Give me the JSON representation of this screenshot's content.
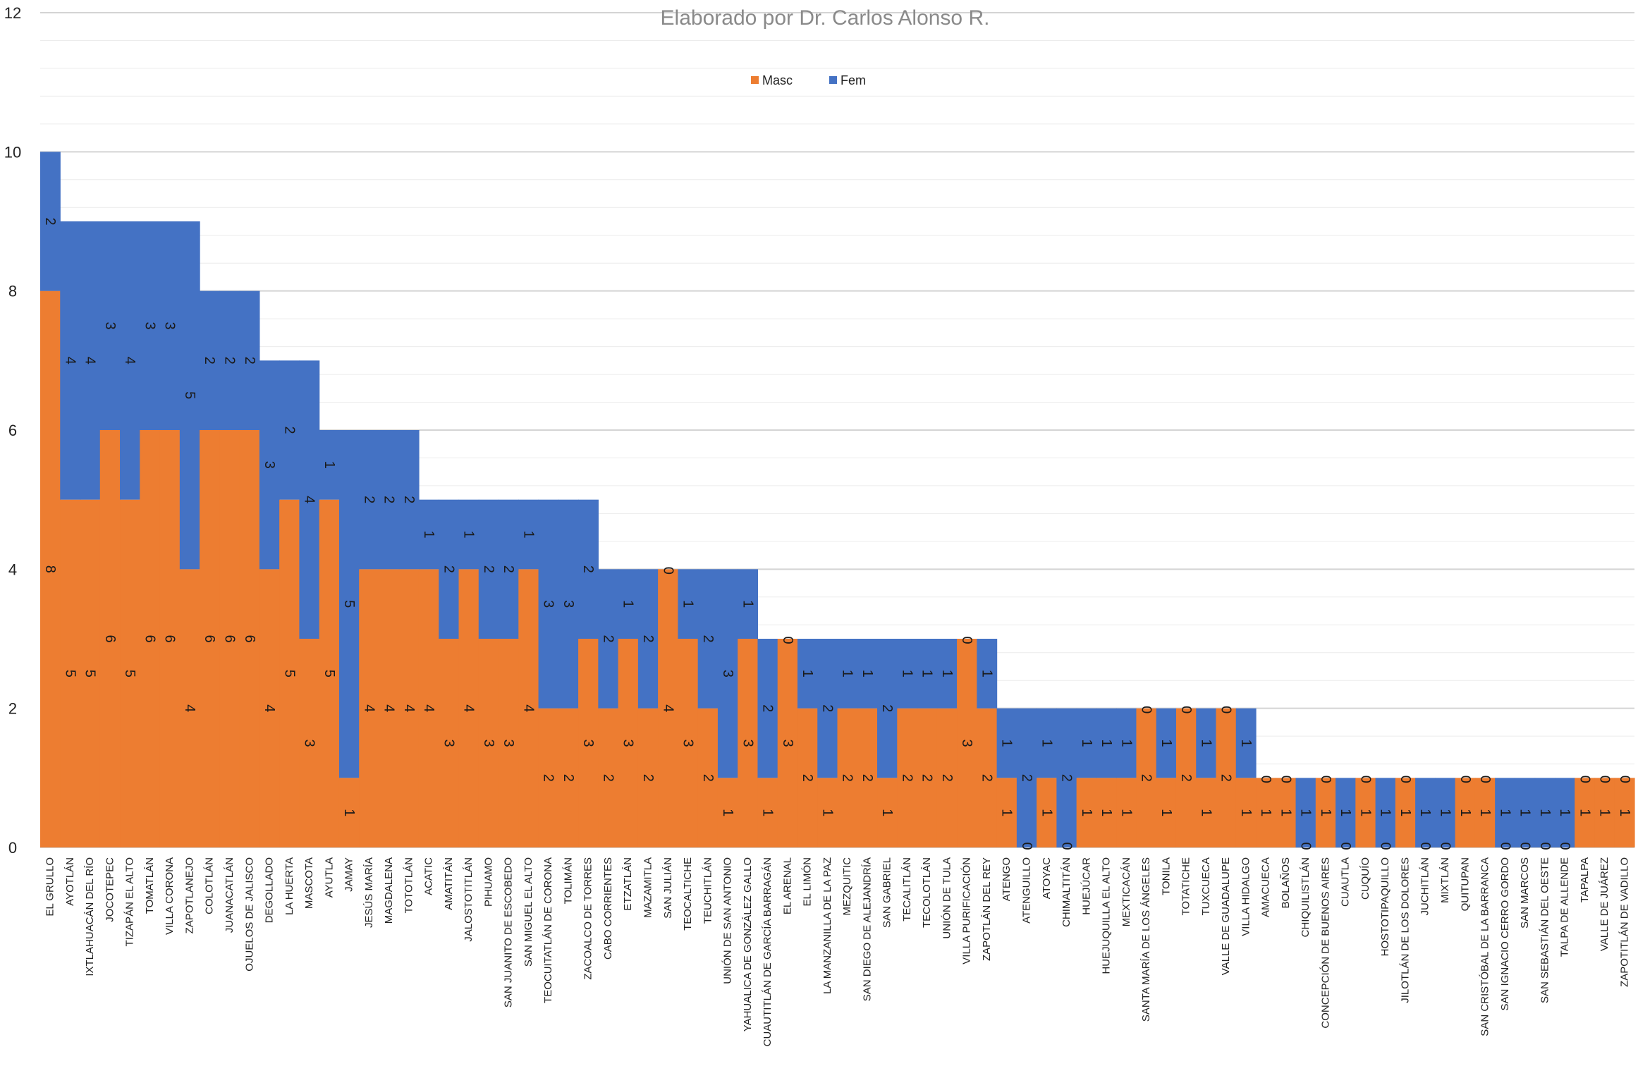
{
  "chart_data": {
    "type": "bar",
    "stacked": true,
    "title": "Elaborado por Dr. Carlos Alonso R.",
    "xlabel": "",
    "ylabel": "",
    "ylim": [
      0,
      12
    ],
    "yticks": [
      0,
      2,
      4,
      6,
      8,
      10,
      12
    ],
    "grid": true,
    "legend_position": "top-center",
    "categories": [
      "EL GRULLO",
      "AYOTLÁN",
      "IXTLAHUACÁN DEL RÍO",
      "JOCOTEPEC",
      "TIZAPÁN EL ALTO",
      "TOMATLÁN",
      "VILLA CORONA",
      "ZAPOTLANEJO",
      "COLOTLÁN",
      "JUANACATLÁN",
      "OJUELOS DE JALISCO",
      "DEGOLLADO",
      "LA HUERTA",
      "MASCOTA",
      "AYUTLA",
      "JAMAY",
      "JESÚS MARÍA",
      "MAGDALENA",
      "TOTOTLÁN",
      "ACATIC",
      "AMATITÁN",
      "JALOSTOTITLÁN",
      "PIHUAMO",
      "SAN JUANITO DE ESCOBEDO",
      "SAN MIGUEL EL ALTO",
      "TEOCUITATLÁN DE CORONA",
      "TOLIMÁN",
      "ZACOALCO DE TORRES",
      "CABO CORRIENTES",
      "ETZATLÁN",
      "MAZAMITLA",
      "SAN JULIÁN",
      "TEOCALTICHE",
      "TEUCHITLÁN",
      "UNIÓN DE SAN ANTONIO",
      "YAHUALICA DE GONZÁLEZ GALLO",
      "CUAUTITLÁN DE GARCÍA BARRAGÁN",
      "EL ARENAL",
      "EL LIMÓN",
      "LA MANZANILLA DE LA PAZ",
      "MEZQUITIC",
      "SAN DIEGO DE ALEJANDRÍA",
      "SAN GABRIEL",
      "TECALITLÁN",
      "TECOLOTLÁN",
      "UNIÓN DE TULA",
      "VILLA PURIFICACIÓN",
      "ZAPOTLÁN DEL REY",
      "ATENGO",
      "ATENGUILLO",
      "ATOYAC",
      "CHIMALTITÁN",
      "HUEJÚCAR",
      "HUEJUQUILLA EL ALTO",
      "MEXTICACÁN",
      "SANTA MARÍA DE LOS ÁNGELES",
      "TONILA",
      "TOTATICHE",
      "TUXCUECA",
      "VALLE DE GUADALUPE",
      "VILLA HIDALGO",
      "AMACUECA",
      "BOLAÑOS",
      "CHIQUILISTLÁN",
      "CONCEPCIÓN DE BUENOS AIRES",
      "CUAUTLA",
      "CUQUÍO",
      "HOSTOTIPAQUILLO",
      "JILOTLÁN DE LOS DOLORES",
      "JUCHITLÁN",
      "MIXTLÁN",
      "QUITUPAN",
      "SAN CRISTÓBAL DE LA BARRANCA",
      "SAN IGNACIO CERRO GORDO",
      "SAN MARCOS",
      "SAN SEBASTIÁN DEL OESTE",
      "TALPA DE ALLENDE",
      "TAPALPA",
      "VALLE DE JUÁREZ",
      "ZAPOTITLÁN DE VADILLO"
    ],
    "series": [
      {
        "name": "Masc",
        "color": "#ED7D31",
        "values": [
          8,
          5,
          5,
          6,
          5,
          6,
          6,
          4,
          6,
          6,
          6,
          4,
          5,
          3,
          5,
          1,
          4,
          4,
          4,
          4,
          3,
          4,
          3,
          3,
          4,
          2,
          2,
          3,
          2,
          3,
          2,
          4,
          3,
          2,
          1,
          3,
          1,
          3,
          2,
          1,
          2,
          2,
          1,
          2,
          2,
          2,
          3,
          2,
          1,
          0,
          1,
          0,
          1,
          1,
          1,
          2,
          1,
          2,
          1,
          2,
          1,
          1,
          1,
          0,
          1,
          0,
          1,
          0,
          1,
          0,
          0,
          1,
          1,
          0,
          0,
          0,
          0,
          1,
          1,
          1
        ]
      },
      {
        "name": "Fem",
        "color": "#4472C4",
        "values": [
          2,
          4,
          4,
          3,
          4,
          3,
          3,
          5,
          2,
          2,
          2,
          3,
          2,
          4,
          1,
          5,
          2,
          2,
          2,
          1,
          2,
          1,
          2,
          2,
          1,
          3,
          3,
          2,
          2,
          1,
          2,
          0,
          1,
          2,
          3,
          1,
          2,
          0,
          1,
          2,
          1,
          1,
          2,
          1,
          1,
          1,
          0,
          1,
          1,
          2,
          1,
          2,
          1,
          1,
          1,
          0,
          1,
          0,
          1,
          0,
          1,
          0,
          0,
          1,
          0,
          1,
          0,
          1,
          0,
          1,
          1,
          0,
          0,
          1,
          1,
          1,
          1,
          0,
          0,
          0
        ]
      }
    ]
  }
}
